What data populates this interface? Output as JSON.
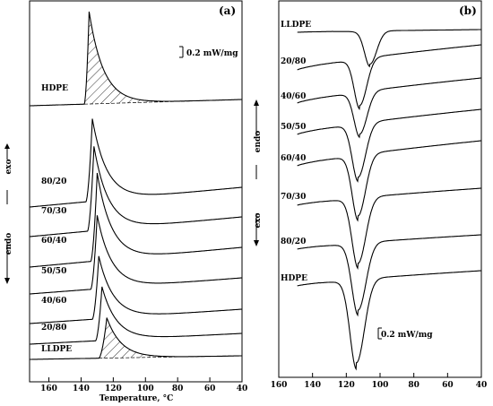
{
  "chart_data": [
    {
      "type": "line",
      "panel_label": "(a)",
      "xlabel": "Temperature, °C",
      "xticks": [
        160,
        140,
        120,
        100,
        80,
        60,
        40
      ],
      "xlim": [
        172,
        40
      ],
      "scale_bar": "0.2 mW/mg",
      "direction_labels": [
        "exo",
        "endo"
      ],
      "hatched_series": [
        "HDPE",
        "LLDPE"
      ],
      "series": [
        {
          "name": "HDPE",
          "peak_temp": 135,
          "onset_temp": 138
        },
        {
          "name": "80/20",
          "peak_temp": 133,
          "onset_temp": 137
        },
        {
          "name": "70/30",
          "peak_temp": 132,
          "onset_temp": 136
        },
        {
          "name": "60/40",
          "peak_temp": 130,
          "onset_temp": 134
        },
        {
          "name": "50/50",
          "peak_temp": 130,
          "onset_temp": 134
        },
        {
          "name": "40/60",
          "peak_temp": 129,
          "onset_temp": 133
        },
        {
          "name": "20/80",
          "peak_temp": 127,
          "onset_temp": 131
        },
        {
          "name": "LLDPE",
          "peak_temp": 124,
          "onset_temp": 129
        }
      ]
    },
    {
      "type": "line",
      "panel_label": "(b)",
      "xlabel": "",
      "xticks": [
        160,
        140,
        120,
        100,
        80,
        60,
        40
      ],
      "xlim": [
        160,
        40
      ],
      "scale_bar": "0.2 mW/mg",
      "direction_labels": [
        "endo",
        "exo"
      ],
      "series": [
        {
          "name": "LLDPE",
          "peak_temp": 106
        },
        {
          "name": "20/80",
          "peak_temp": 112
        },
        {
          "name": "40/60",
          "peak_temp": 112
        },
        {
          "name": "50/50",
          "peak_temp": 113
        },
        {
          "name": "60/40",
          "peak_temp": 113
        },
        {
          "name": "70/30",
          "peak_temp": 113
        },
        {
          "name": "80/20",
          "peak_temp": 113
        },
        {
          "name": "HDPE",
          "peak_temp": 114
        }
      ]
    }
  ]
}
